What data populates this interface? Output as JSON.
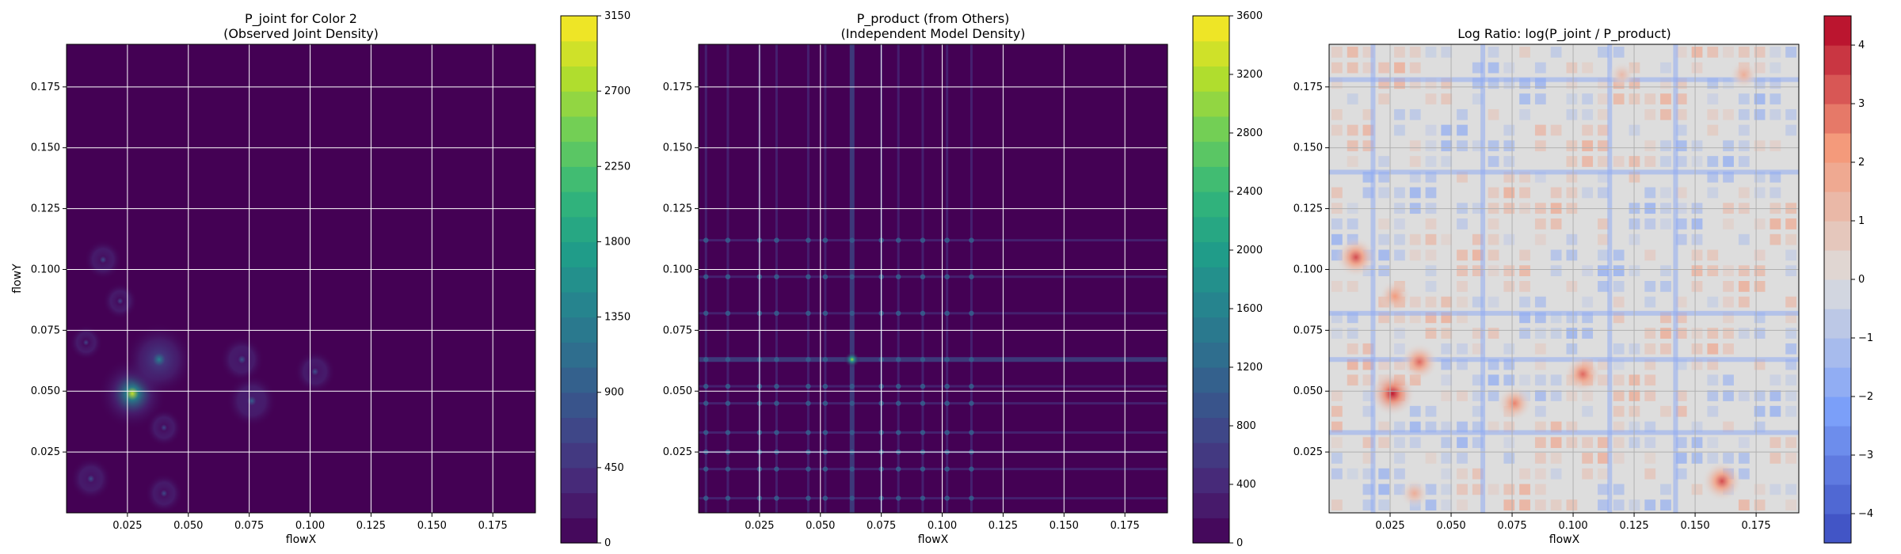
{
  "colors": {
    "viridis": [
      "#440154",
      "#482878",
      "#3e4989",
      "#31688e",
      "#26828e",
      "#1f9e89",
      "#35b779",
      "#6ece58",
      "#b5de2b",
      "#fde725"
    ],
    "coolwarm_low": "#3b4cc0",
    "coolwarm_mid": "#dddddd",
    "coolwarm_high": "#b40426",
    "grid": "#ffffff",
    "grid_ratio": "#b0b0b0"
  },
  "chart_data": [
    {
      "type": "heatmap",
      "title": "P_joint for Color 2",
      "subtitle": "(Observed Joint Density)",
      "xlabel": "flowX",
      "ylabel": "flowY",
      "xlim": [
        0.0,
        0.1925
      ],
      "ylim": [
        0.0,
        0.1925
      ],
      "xticks": [
        0.025,
        0.05,
        0.075,
        0.1,
        0.125,
        0.15,
        0.175
      ],
      "yticks": [
        0.025,
        0.05,
        0.075,
        0.1,
        0.125,
        0.15,
        0.175
      ],
      "tick_labels_x": [
        "0.025",
        "0.050",
        "0.075",
        "0.100",
        "0.125",
        "0.150",
        "0.175"
      ],
      "tick_labels_y": [
        "0.025",
        "0.050",
        "0.075",
        "0.100",
        "0.125",
        "0.150",
        "0.175"
      ],
      "grid": true,
      "colormap": "viridis",
      "colorbar": {
        "vmin": 0,
        "vmax": 3150,
        "ticks": [
          0,
          450,
          900,
          1350,
          1800,
          2250,
          2700,
          3150
        ],
        "tick_labels": [
          "0",
          "450",
          "900",
          "1350",
          "1800",
          "2250",
          "2700",
          "3150"
        ],
        "levels": 21
      },
      "peaks": [
        {
          "x": 0.027,
          "y": 0.049,
          "value": 2400
        },
        {
          "x": 0.038,
          "y": 0.063,
          "value": 900
        },
        {
          "x": 0.076,
          "y": 0.046,
          "value": 450
        },
        {
          "x": 0.072,
          "y": 0.063,
          "value": 350
        },
        {
          "x": 0.102,
          "y": 0.058,
          "value": 300
        },
        {
          "x": 0.015,
          "y": 0.104,
          "value": 250
        },
        {
          "x": 0.01,
          "y": 0.014,
          "value": 300
        },
        {
          "x": 0.04,
          "y": 0.008,
          "value": 250
        },
        {
          "x": 0.04,
          "y": 0.035,
          "value": 220
        },
        {
          "x": 0.022,
          "y": 0.087,
          "value": 200
        },
        {
          "x": 0.008,
          "y": 0.07,
          "value": 180
        }
      ]
    },
    {
      "type": "heatmap",
      "title": "P_product (from Others)",
      "subtitle": "(Independent Model Density)",
      "xlabel": "flowX",
      "ylabel": "",
      "xlim": [
        0.0,
        0.1925
      ],
      "ylim": [
        0.0,
        0.1925
      ],
      "xticks": [
        0.025,
        0.05,
        0.075,
        0.1,
        0.125,
        0.15,
        0.175
      ],
      "yticks": [
        0.025,
        0.05,
        0.075,
        0.1,
        0.125,
        0.15,
        0.175
      ],
      "tick_labels_x": [
        "0.025",
        "0.050",
        "0.075",
        "0.100",
        "0.125",
        "0.150",
        "0.175"
      ],
      "tick_labels_y": [
        "0.025",
        "0.050",
        "0.075",
        "0.100",
        "0.125",
        "0.150",
        "0.175"
      ],
      "grid": true,
      "colormap": "viridis",
      "colorbar": {
        "vmin": 0,
        "vmax": 3600,
        "ticks": [
          0,
          400,
          800,
          1200,
          1600,
          2000,
          2400,
          2800,
          3200,
          3600
        ],
        "tick_labels": [
          "0",
          "400",
          "800",
          "1200",
          "1600",
          "2000",
          "2400",
          "2800",
          "3200",
          "3600"
        ],
        "levels": 21
      },
      "stripe_x": [
        0.003,
        0.012,
        0.025,
        0.032,
        0.045,
        0.052,
        0.063,
        0.075,
        0.082,
        0.092,
        0.102,
        0.112
      ],
      "stripe_y": [
        0.006,
        0.018,
        0.025,
        0.033,
        0.045,
        0.052,
        0.063,
        0.082,
        0.097,
        0.112
      ],
      "peak": {
        "x": 0.063,
        "y": 0.063,
        "value": 2600
      }
    },
    {
      "type": "heatmap",
      "title": "Log Ratio: log(P_joint / P_product)",
      "subtitle": "",
      "xlabel": "flowX",
      "ylabel": "",
      "xlim": [
        0.0,
        0.1925
      ],
      "ylim": [
        0.0,
        0.1925
      ],
      "xticks": [
        0.025,
        0.05,
        0.075,
        0.1,
        0.125,
        0.15,
        0.175
      ],
      "yticks": [
        0.025,
        0.05,
        0.075,
        0.1,
        0.125,
        0.15,
        0.175
      ],
      "tick_labels_x": [
        "0.025",
        "0.050",
        "0.075",
        "0.100",
        "0.125",
        "0.150",
        "0.175"
      ],
      "tick_labels_y": [
        "0.025",
        "0.050",
        "0.075",
        "0.100",
        "0.125",
        "0.150",
        "0.175"
      ],
      "grid": true,
      "colormap": "coolwarm",
      "colorbar": {
        "vmin": -4.5,
        "vmax": 4.5,
        "ticks": [
          -4,
          -3,
          -2,
          -1,
          0,
          1,
          2,
          3,
          4
        ],
        "tick_labels": [
          "−4",
          "−3",
          "−2",
          "−1",
          "0",
          "1",
          "2",
          "3",
          "4"
        ],
        "levels": 18
      },
      "hotspots": [
        {
          "x": 0.026,
          "y": 0.049,
          "value": 4.2
        },
        {
          "x": 0.011,
          "y": 0.105,
          "value": 3.4
        },
        {
          "x": 0.037,
          "y": 0.062,
          "value": 3.0
        },
        {
          "x": 0.104,
          "y": 0.057,
          "value": 3.0
        },
        {
          "x": 0.076,
          "y": 0.045,
          "value": 2.6
        },
        {
          "x": 0.161,
          "y": 0.013,
          "value": 3.4
        },
        {
          "x": 0.027,
          "y": 0.089,
          "value": 2.2
        },
        {
          "x": 0.17,
          "y": 0.18,
          "value": 1.6
        },
        {
          "x": 0.12,
          "y": 0.18,
          "value": 1.2
        },
        {
          "x": 0.035,
          "y": 0.008,
          "value": 1.6
        }
      ],
      "cold_lines_x": [
        0.063,
        0.018,
        0.115,
        0.142
      ],
      "cold_lines_y": [
        0.063,
        0.082,
        0.178,
        0.14,
        0.033
      ]
    }
  ]
}
